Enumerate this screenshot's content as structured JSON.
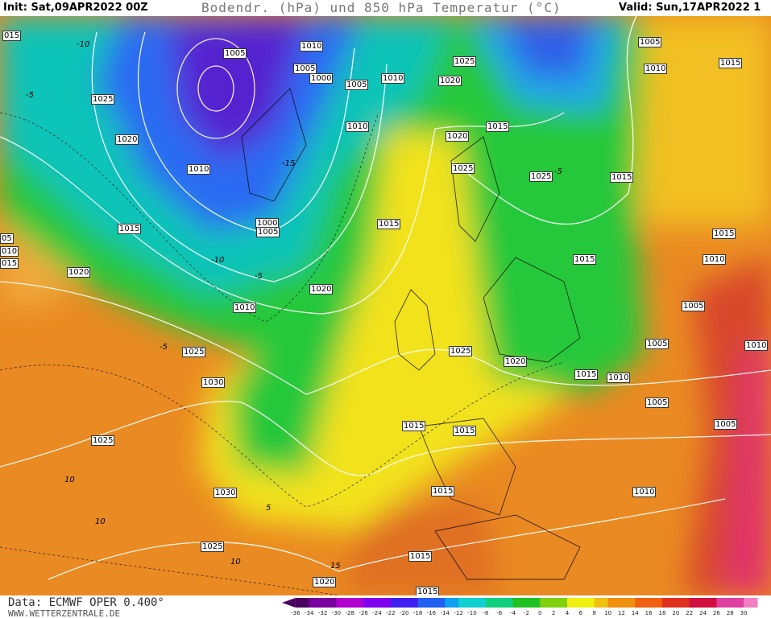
{
  "header": {
    "init": "Init: Sat,09APR2022 00Z",
    "title": "Bodendr. (hPa) und 850 hPa Temperatur (°C)",
    "valid": "Valid: Sun,17APR2022 1"
  },
  "isobar_labels": [
    "015",
    "1005",
    "1010",
    "1005",
    "1000",
    "1005",
    "1010",
    "1025",
    "1020",
    "1005",
    "1010",
    "1015",
    "1025",
    "1020",
    "1010",
    "1010",
    "1015",
    "1020",
    "1025",
    "1025",
    "1015",
    "1015",
    "1000",
    "1005",
    "1015",
    "1015",
    "05",
    "010",
    "015",
    "1020",
    "1015",
    "1010",
    "1020",
    "1010",
    "1005",
    "1025",
    "1025",
    "1020",
    "1005",
    "1010",
    "1015",
    "1010",
    "1030",
    "1005",
    "1005",
    "1015",
    "1015",
    "1025",
    "1030",
    "1015",
    "1010",
    "1025",
    "1015",
    "1020",
    "1015"
  ],
  "temperature_labels": [
    "-10",
    "-5",
    "-10",
    "-5",
    "-5",
    "5",
    "10",
    "10",
    "10",
    "15",
    "-15",
    "-5"
  ],
  "footer": {
    "data": "Data: ECMWF OPER 0.400°",
    "site": "WWW.WETTERZENTRALE.DE"
  },
  "legend": {
    "labels": [
      -36,
      -34,
      -32,
      -30,
      -28,
      -26,
      -24,
      -22,
      -20,
      -18,
      -16,
      -14,
      -12,
      -10,
      -8,
      -6,
      -4,
      -2,
      0,
      2,
      4,
      6,
      8,
      10,
      12,
      14,
      16,
      18,
      20,
      22,
      24,
      26,
      28,
      30
    ]
  }
}
